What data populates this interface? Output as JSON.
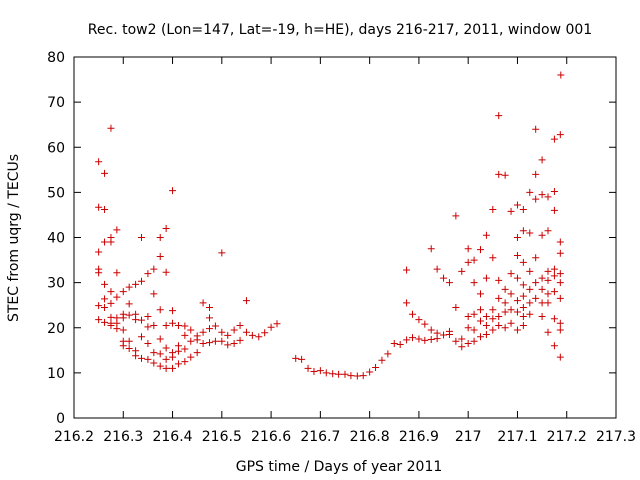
{
  "chart_data": {
    "type": "scatter",
    "title": "Rec. tow2 (Lon=147, Lat=-19, h=HE), days 216-217, 2011, window 001",
    "xlabel": "GPS time / Days of year 2011",
    "ylabel": "STEC from uqrg / TECUs",
    "xlim": [
      216.2,
      217.3
    ],
    "ylim": [
      0,
      80
    ],
    "x_ticks": [
      "216.2",
      "216.3",
      "216.4",
      "216.5",
      "216.6",
      "216.7",
      "216.8",
      "216.9",
      "217",
      "217.1",
      "217.2",
      "217.3"
    ],
    "y_ticks": [
      "0",
      "10",
      "20",
      "30",
      "40",
      "50",
      "60",
      "70",
      "80"
    ],
    "marker": "plus",
    "color": "#cc0000",
    "grid": false,
    "legend": "none",
    "points": [
      [
        216.25,
        56.8
      ],
      [
        216.25,
        46.7
      ],
      [
        216.25,
        36.8
      ],
      [
        216.25,
        33.0
      ],
      [
        216.25,
        32.2
      ],
      [
        216.25,
        24.9
      ],
      [
        216.25,
        21.8
      ],
      [
        216.262,
        54.2
      ],
      [
        216.262,
        46.2
      ],
      [
        216.262,
        39.0
      ],
      [
        216.262,
        29.6
      ],
      [
        216.262,
        24.5
      ],
      [
        216.262,
        21.2
      ],
      [
        216.262,
        26.4
      ],
      [
        216.275,
        64.2
      ],
      [
        216.275,
        40.0
      ],
      [
        216.275,
        39.0
      ],
      [
        216.275,
        28.0
      ],
      [
        216.275,
        25.4
      ],
      [
        216.275,
        22.3
      ],
      [
        216.275,
        21.0
      ],
      [
        216.275,
        20.5
      ],
      [
        216.287,
        41.7
      ],
      [
        216.287,
        32.2
      ],
      [
        216.287,
        26.8
      ],
      [
        216.287,
        22.2
      ],
      [
        216.287,
        19.8
      ],
      [
        216.287,
        21.0
      ],
      [
        216.3,
        28.0
      ],
      [
        216.3,
        23.0
      ],
      [
        216.3,
        22.2
      ],
      [
        216.3,
        19.5
      ],
      [
        216.3,
        17.0
      ],
      [
        216.3,
        16.0
      ],
      [
        216.312,
        29.0
      ],
      [
        216.312,
        25.3
      ],
      [
        216.312,
        22.8
      ],
      [
        216.312,
        17.0
      ],
      [
        216.312,
        15.4
      ],
      [
        216.325,
        29.6
      ],
      [
        216.325,
        23.0
      ],
      [
        216.325,
        21.8
      ],
      [
        216.325,
        14.9
      ],
      [
        216.325,
        13.8
      ],
      [
        216.337,
        40.0
      ],
      [
        216.337,
        30.3
      ],
      [
        216.337,
        21.7
      ],
      [
        216.337,
        18.0
      ],
      [
        216.337,
        13.2
      ],
      [
        216.35,
        32.0
      ],
      [
        216.35,
        22.5
      ],
      [
        216.35,
        20.2
      ],
      [
        216.35,
        16.5
      ],
      [
        216.35,
        13.0
      ],
      [
        216.362,
        33.0
      ],
      [
        216.362,
        27.5
      ],
      [
        216.362,
        20.5
      ],
      [
        216.362,
        14.5
      ],
      [
        216.362,
        12.2
      ],
      [
        216.375,
        40.0
      ],
      [
        216.375,
        35.8
      ],
      [
        216.375,
        24.0
      ],
      [
        216.375,
        17.5
      ],
      [
        216.375,
        14.2
      ],
      [
        216.375,
        11.5
      ],
      [
        216.387,
        42.0
      ],
      [
        216.387,
        32.3
      ],
      [
        216.387,
        20.5
      ],
      [
        216.387,
        15.5
      ],
      [
        216.387,
        13.0
      ],
      [
        216.387,
        11.0
      ],
      [
        216.4,
        50.4
      ],
      [
        216.4,
        23.8
      ],
      [
        216.4,
        21.0
      ],
      [
        216.4,
        14.5
      ],
      [
        216.4,
        13.5
      ],
      [
        216.4,
        11.0
      ],
      [
        216.412,
        20.5
      ],
      [
        216.412,
        16.0
      ],
      [
        216.412,
        14.8
      ],
      [
        216.412,
        12.0
      ],
      [
        216.425,
        20.4
      ],
      [
        216.425,
        18.3
      ],
      [
        216.425,
        15.3
      ],
      [
        216.425,
        12.5
      ],
      [
        216.437,
        19.5
      ],
      [
        216.437,
        17.0
      ],
      [
        216.437,
        13.5
      ],
      [
        216.45,
        18.2
      ],
      [
        216.45,
        17.3
      ],
      [
        216.45,
        14.5
      ],
      [
        216.462,
        25.5
      ],
      [
        216.462,
        19.0
      ],
      [
        216.462,
        16.5
      ],
      [
        216.475,
        24.5
      ],
      [
        216.475,
        22.2
      ],
      [
        216.475,
        19.8
      ],
      [
        216.475,
        16.7
      ],
      [
        216.487,
        20.4
      ],
      [
        216.487,
        17.0
      ],
      [
        216.5,
        36.6
      ],
      [
        216.5,
        19.0
      ],
      [
        216.5,
        17.0
      ],
      [
        216.512,
        18.3
      ],
      [
        216.512,
        16.2
      ],
      [
        216.525,
        19.5
      ],
      [
        216.525,
        16.5
      ],
      [
        216.537,
        20.5
      ],
      [
        216.537,
        17.2
      ],
      [
        216.55,
        26.0
      ],
      [
        216.55,
        19.0
      ],
      [
        216.562,
        18.3
      ],
      [
        216.575,
        18.0
      ],
      [
        216.587,
        18.9
      ],
      [
        216.6,
        20.1
      ],
      [
        216.612,
        20.9
      ],
      [
        216.65,
        13.2
      ],
      [
        216.662,
        13.0
      ],
      [
        216.675,
        11.0
      ],
      [
        216.687,
        10.3
      ],
      [
        216.7,
        10.5
      ],
      [
        216.712,
        10.0
      ],
      [
        216.725,
        9.8
      ],
      [
        216.737,
        9.7
      ],
      [
        216.75,
        9.7
      ],
      [
        216.762,
        9.4
      ],
      [
        216.775,
        9.3
      ],
      [
        216.787,
        9.4
      ],
      [
        216.8,
        10.2
      ],
      [
        216.812,
        11.2
      ],
      [
        216.825,
        12.8
      ],
      [
        216.837,
        14.2
      ],
      [
        216.85,
        16.5
      ],
      [
        216.862,
        16.3
      ],
      [
        216.875,
        32.8
      ],
      [
        216.875,
        25.5
      ],
      [
        216.875,
        17.3
      ],
      [
        216.887,
        23.0
      ],
      [
        216.887,
        17.8
      ],
      [
        216.9,
        21.8
      ],
      [
        216.9,
        17.5
      ],
      [
        216.912,
        20.8
      ],
      [
        216.912,
        17.2
      ],
      [
        216.925,
        37.5
      ],
      [
        216.925,
        19.5
      ],
      [
        216.925,
        17.4
      ],
      [
        216.937,
        33.0
      ],
      [
        216.937,
        18.8
      ],
      [
        216.937,
        17.6
      ],
      [
        216.95,
        31.0
      ],
      [
        216.95,
        18.4
      ],
      [
        216.962,
        30.0
      ],
      [
        216.962,
        19.2
      ],
      [
        216.962,
        18.5
      ],
      [
        216.987,
        32.5
      ],
      [
        216.987,
        17.5
      ],
      [
        216.987,
        15.8
      ],
      [
        216.975,
        44.8
      ],
      [
        216.975,
        24.5
      ],
      [
        216.975,
        17.0
      ],
      [
        217.0,
        37.5
      ],
      [
        217.0,
        34.5
      ],
      [
        217.0,
        22.5
      ],
      [
        217.0,
        20.0
      ],
      [
        217.0,
        16.5
      ],
      [
        217.012,
        35.0
      ],
      [
        217.012,
        30.0
      ],
      [
        217.012,
        23.0
      ],
      [
        217.012,
        19.5
      ],
      [
        217.012,
        17.0
      ],
      [
        217.025,
        37.3
      ],
      [
        217.025,
        27.5
      ],
      [
        217.025,
        24.0
      ],
      [
        217.025,
        21.5
      ],
      [
        217.025,
        18.0
      ],
      [
        217.037,
        40.5
      ],
      [
        217.037,
        31.0
      ],
      [
        217.037,
        22.5
      ],
      [
        217.037,
        20.5
      ],
      [
        217.037,
        18.5
      ],
      [
        217.05,
        46.2
      ],
      [
        217.05,
        35.5
      ],
      [
        217.05,
        24.0
      ],
      [
        217.05,
        22.0
      ],
      [
        217.05,
        19.5
      ],
      [
        217.062,
        67.0
      ],
      [
        217.062,
        54.0
      ],
      [
        217.062,
        30.5
      ],
      [
        217.062,
        26.5
      ],
      [
        217.062,
        22.5
      ],
      [
        217.062,
        20.5
      ],
      [
        217.075,
        53.8
      ],
      [
        217.075,
        28.5
      ],
      [
        217.075,
        25.5
      ],
      [
        217.075,
        23.5
      ],
      [
        217.075,
        20.0
      ],
      [
        217.087,
        45.8
      ],
      [
        217.087,
        32.0
      ],
      [
        217.087,
        27.5
      ],
      [
        217.087,
        24.0
      ],
      [
        217.087,
        21.0
      ],
      [
        217.1,
        47.2
      ],
      [
        217.1,
        40.0
      ],
      [
        217.1,
        36.0
      ],
      [
        217.1,
        31.0
      ],
      [
        217.1,
        26.0
      ],
      [
        217.1,
        23.5
      ],
      [
        217.1,
        19.5
      ],
      [
        217.112,
        46.2
      ],
      [
        217.112,
        41.5
      ],
      [
        217.112,
        34.5
      ],
      [
        217.112,
        29.5
      ],
      [
        217.112,
        27.0
      ],
      [
        217.112,
        24.5
      ],
      [
        217.112,
        22.5
      ],
      [
        217.112,
        20.5
      ],
      [
        217.125,
        50.0
      ],
      [
        217.125,
        41.0
      ],
      [
        217.125,
        32.5
      ],
      [
        217.125,
        28.5
      ],
      [
        217.125,
        25.5
      ],
      [
        217.125,
        23.0
      ],
      [
        217.137,
        64.0
      ],
      [
        217.137,
        54.0
      ],
      [
        217.137,
        48.5
      ],
      [
        217.137,
        35.5
      ],
      [
        217.137,
        30.0
      ],
      [
        217.137,
        26.5
      ],
      [
        217.15,
        57.2
      ],
      [
        217.15,
        49.5
      ],
      [
        217.15,
        40.5
      ],
      [
        217.15,
        31.0
      ],
      [
        217.15,
        28.5
      ],
      [
        217.15,
        25.5
      ],
      [
        217.15,
        22.5
      ],
      [
        217.162,
        49.0
      ],
      [
        217.162,
        41.5
      ],
      [
        217.162,
        32.5
      ],
      [
        217.162,
        30.5
      ],
      [
        217.162,
        27.5
      ],
      [
        217.162,
        25.5
      ],
      [
        217.162,
        19.0
      ],
      [
        217.175,
        61.8
      ],
      [
        217.175,
        50.2
      ],
      [
        217.175,
        46.0
      ],
      [
        217.175,
        33.0
      ],
      [
        217.175,
        31.5
      ],
      [
        217.175,
        28.0
      ],
      [
        217.175,
        22.0
      ],
      [
        217.175,
        16.0
      ],
      [
        217.187,
        62.8
      ],
      [
        217.187,
        39.0
      ],
      [
        217.187,
        36.5
      ],
      [
        217.187,
        32.0
      ],
      [
        217.187,
        30.0
      ],
      [
        217.187,
        26.5
      ],
      [
        217.187,
        21.0
      ],
      [
        217.187,
        19.5
      ],
      [
        217.187,
        13.5
      ],
      [
        217.188,
        76.0
      ]
    ]
  }
}
